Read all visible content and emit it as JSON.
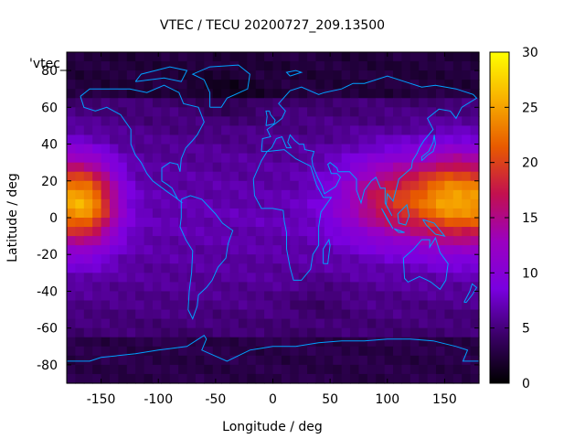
{
  "chart_data": {
    "type": "heatmap",
    "title": "VTEC / TECU 20200727_209.13500",
    "xlabel": "Longitude / deg",
    "ylabel": "Latitude / deg",
    "key_label": "'vtec_",
    "xlim": [
      -180,
      180
    ],
    "ylim": [
      -90,
      90
    ],
    "xticks": [
      -150,
      -100,
      -50,
      0,
      50,
      100,
      150
    ],
    "yticks": [
      80,
      60,
      40,
      20,
      0,
      -20,
      -40,
      -60,
      -80
    ],
    "colorbar": {
      "min": 0,
      "max": 30,
      "ticks": [
        0,
        5,
        10,
        15,
        20,
        25,
        30
      ]
    },
    "colormap": [
      "#000000",
      "#3a0066",
      "#7a00e0",
      "#9b00c0",
      "#c2104f",
      "#e85a00",
      "#f8b000",
      "#ffff00"
    ],
    "coastline_color": "#00a0ff",
    "grid": false,
    "field_model": {
      "description_units": "TECU",
      "background_low_lat": 6,
      "background_mid": 4.5,
      "polar_north": 2.5,
      "polar_south": 3.0,
      "peaks": [
        {
          "lon": -160,
          "lat": 8,
          "value": 21,
          "sigma_lon": 18,
          "sigma_lat": 16
        },
        {
          "lon": 110,
          "lat": 10,
          "value": 18,
          "sigma_lon": 35,
          "sigma_lat": 16
        },
        {
          "lon": 160,
          "lat": 10,
          "value": 19,
          "sigma_lon": 22,
          "sigma_lat": 18
        }
      ]
    }
  }
}
